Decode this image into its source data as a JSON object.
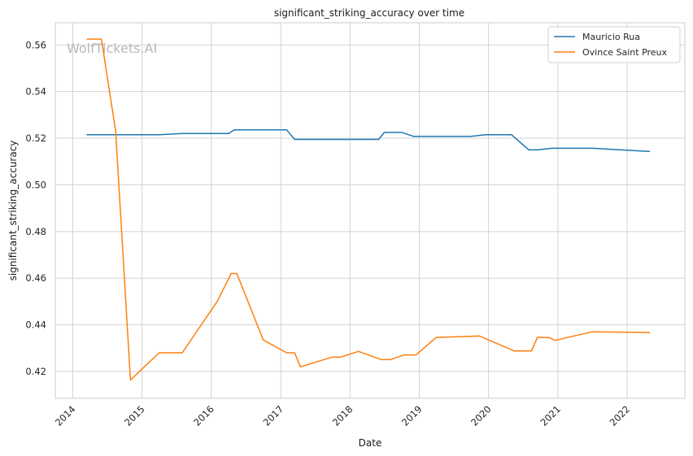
{
  "chart_data": {
    "type": "line",
    "title": "significant_striking_accuracy over time",
    "xlabel": "Date",
    "ylabel": "significant_striking_accuracy",
    "watermark": "WolfTickets.AI",
    "xlim": [
      "2013-10-01",
      "2022-11-01"
    ],
    "ylim": [
      0.4085,
      0.5695
    ],
    "x_ticks": [
      "2014",
      "2015",
      "2016",
      "2017",
      "2018",
      "2019",
      "2020",
      "2021",
      "2022"
    ],
    "y_ticks": [
      0.42,
      0.44,
      0.46,
      0.48,
      0.5,
      0.52,
      0.54,
      0.56
    ],
    "y_tick_labels": [
      "0.42",
      "0.44",
      "0.46",
      "0.48",
      "0.50",
      "0.52",
      "0.54",
      "0.56"
    ],
    "grid": true,
    "legend_position": "top-right",
    "series": [
      {
        "name": "Mauricio Rua",
        "color": "#1f77b4",
        "points": [
          [
            "2014-03-15",
            0.5215
          ],
          [
            "2015-04-01",
            0.5215
          ],
          [
            "2015-08-01",
            0.522
          ],
          [
            "2016-04-01",
            0.522
          ],
          [
            "2016-05-01",
            0.5236
          ],
          [
            "2017-02-01",
            0.5236
          ],
          [
            "2017-03-15",
            0.5195
          ],
          [
            "2018-06-01",
            0.5195
          ],
          [
            "2018-07-01",
            0.5225
          ],
          [
            "2018-10-01",
            0.5225
          ],
          [
            "2018-12-01",
            0.5208
          ],
          [
            "2019-10-01",
            0.5208
          ],
          [
            "2019-12-15",
            0.5215
          ],
          [
            "2020-05-01",
            0.5215
          ],
          [
            "2020-08-01",
            0.515
          ],
          [
            "2020-09-15",
            0.515
          ],
          [
            "2020-12-01",
            0.5157
          ],
          [
            "2021-07-01",
            0.5157
          ],
          [
            "2022-05-01",
            0.5143
          ]
        ]
      },
      {
        "name": "Ovince Saint Preux",
        "color": "#ff7f0e",
        "points": [
          [
            "2014-03-15",
            0.5625
          ],
          [
            "2014-06-01",
            0.5625
          ],
          [
            "2014-08-15",
            0.523
          ],
          [
            "2014-11-01",
            0.4163
          ],
          [
            "2015-04-01",
            0.428
          ],
          [
            "2015-08-01",
            0.428
          ],
          [
            "2016-02-01",
            0.45
          ],
          [
            "2016-04-15",
            0.462
          ],
          [
            "2016-05-15",
            0.462
          ],
          [
            "2016-10-01",
            0.4335
          ],
          [
            "2017-02-01",
            0.428
          ],
          [
            "2017-03-15",
            0.428
          ],
          [
            "2017-04-15",
            0.422
          ],
          [
            "2017-10-01",
            0.4262
          ],
          [
            "2017-11-15",
            0.4262
          ],
          [
            "2018-02-15",
            0.4286
          ],
          [
            "2018-06-15",
            0.4251
          ],
          [
            "2018-08-01",
            0.4251
          ],
          [
            "2018-10-15",
            0.4271
          ],
          [
            "2018-12-15",
            0.4271
          ],
          [
            "2019-04-01",
            0.4346
          ],
          [
            "2019-11-15",
            0.4352
          ],
          [
            "2020-05-15",
            0.4288
          ],
          [
            "2020-08-15",
            0.4288
          ],
          [
            "2020-09-15",
            0.4346
          ],
          [
            "2020-11-15",
            0.4346
          ],
          [
            "2020-12-15",
            0.4333
          ],
          [
            "2021-07-01",
            0.437
          ],
          [
            "2022-05-01",
            0.4367
          ]
        ]
      }
    ]
  }
}
